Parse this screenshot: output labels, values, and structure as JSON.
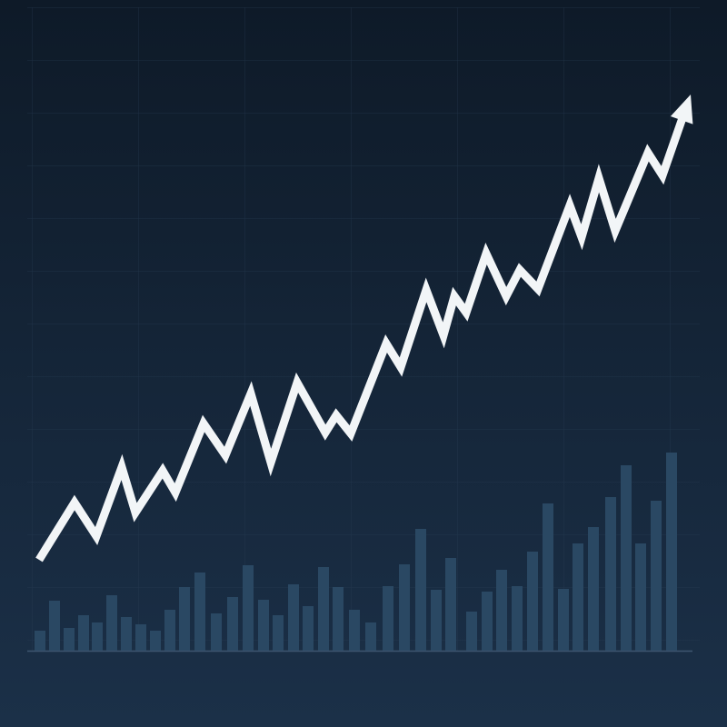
{
  "chart_data": [
    {
      "type": "line",
      "color": "#f2f5f7",
      "xlim": [
        0,
        740
      ],
      "ylim": [
        0,
        640
      ],
      "x": [
        13,
        52,
        76,
        104,
        119,
        149,
        163,
        194,
        218,
        246,
        268,
        297,
        328,
        340,
        356,
        395,
        411,
        439,
        458,
        470,
        483,
        505,
        527,
        542,
        562,
        597,
        610,
        629,
        647,
        683,
        699,
        730
      ],
      "values": [
        100,
        163,
        126,
        202,
        152,
        198,
        174,
        250,
        215,
        283,
        207,
        295,
        240,
        259,
        239,
        338,
        312,
        397,
        347,
        390,
        372,
        437,
        390,
        419,
        398,
        490,
        455,
        520,
        462,
        548,
        523,
        612
      ]
    },
    {
      "type": "bar",
      "color": "#2a4863",
      "xlim": [
        0,
        740
      ],
      "ylim": [
        0,
        640
      ],
      "x": [
        14,
        30,
        46,
        62,
        77,
        93,
        109,
        125,
        141,
        157,
        173,
        190,
        208,
        226,
        243,
        260,
        276,
        293,
        309,
        326,
        342,
        360,
        378,
        397,
        415,
        433,
        450,
        466,
        489,
        506,
        522,
        539,
        556,
        573,
        590,
        606,
        623,
        642,
        659,
        675,
        692,
        709
      ],
      "values": [
        22,
        55,
        25,
        39,
        31,
        61,
        37,
        29,
        22,
        45,
        70,
        86,
        41,
        59,
        94,
        56,
        39,
        73,
        49,
        92,
        70,
        45,
        31,
        71,
        95,
        134,
        67,
        102,
        43,
        65,
        89,
        71,
        109,
        162,
        68,
        118,
        136,
        169,
        204,
        118,
        165,
        218
      ]
    }
  ]
}
